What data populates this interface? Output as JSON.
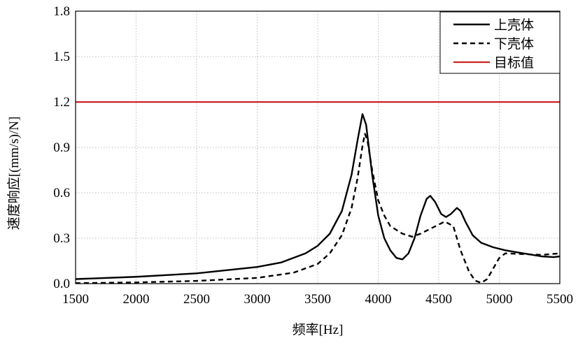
{
  "chart_data": {
    "type": "line",
    "xlabel": "频率[Hz]",
    "ylabel": "速度响应[(mm/s)/N]",
    "xlim": [
      1500,
      5500
    ],
    "ylim": [
      0,
      1.8
    ],
    "x_ticks": [
      "1500",
      "2000",
      "2500",
      "3000",
      "3500",
      "4000",
      "4500",
      "5000",
      "5500"
    ],
    "y_ticks": [
      "0.0",
      "0.3",
      "0.6",
      "0.9",
      "1.2",
      "1.5",
      "1.8"
    ],
    "grid": "dotted",
    "legend_position": "top-right",
    "series": [
      {
        "name": "上壳体",
        "color": "#000000",
        "dash": "solid",
        "points": [
          [
            1500,
            0.03
          ],
          [
            2000,
            0.045
          ],
          [
            2500,
            0.068
          ],
          [
            3000,
            0.11
          ],
          [
            3200,
            0.14
          ],
          [
            3400,
            0.2
          ],
          [
            3500,
            0.25
          ],
          [
            3600,
            0.33
          ],
          [
            3700,
            0.48
          ],
          [
            3780,
            0.72
          ],
          [
            3830,
            0.95
          ],
          [
            3870,
            1.12
          ],
          [
            3900,
            1.05
          ],
          [
            3950,
            0.72
          ],
          [
            4000,
            0.45
          ],
          [
            4050,
            0.3
          ],
          [
            4100,
            0.22
          ],
          [
            4150,
            0.17
          ],
          [
            4200,
            0.16
          ],
          [
            4250,
            0.2
          ],
          [
            4300,
            0.3
          ],
          [
            4350,
            0.45
          ],
          [
            4400,
            0.56
          ],
          [
            4430,
            0.58
          ],
          [
            4470,
            0.54
          ],
          [
            4520,
            0.46
          ],
          [
            4560,
            0.44
          ],
          [
            4600,
            0.46
          ],
          [
            4650,
            0.5
          ],
          [
            4680,
            0.48
          ],
          [
            4720,
            0.41
          ],
          [
            4780,
            0.32
          ],
          [
            4850,
            0.27
          ],
          [
            4950,
            0.24
          ],
          [
            5050,
            0.22
          ],
          [
            5200,
            0.2
          ],
          [
            5350,
            0.18
          ],
          [
            5450,
            0.175
          ],
          [
            5500,
            0.18
          ]
        ]
      },
      {
        "name": "下壳体",
        "color": "#000000",
        "dash": "dashed",
        "points": [
          [
            1500,
            0.003
          ],
          [
            2000,
            0.008
          ],
          [
            2500,
            0.018
          ],
          [
            3000,
            0.038
          ],
          [
            3300,
            0.072
          ],
          [
            3500,
            0.13
          ],
          [
            3600,
            0.2
          ],
          [
            3700,
            0.32
          ],
          [
            3780,
            0.5
          ],
          [
            3830,
            0.7
          ],
          [
            3870,
            0.91
          ],
          [
            3890,
            0.99
          ],
          [
            3910,
            0.95
          ],
          [
            3950,
            0.75
          ],
          [
            4000,
            0.55
          ],
          [
            4050,
            0.45
          ],
          [
            4100,
            0.38
          ],
          [
            4200,
            0.33
          ],
          [
            4280,
            0.31
          ],
          [
            4350,
            0.33
          ],
          [
            4450,
            0.37
          ],
          [
            4550,
            0.41
          ],
          [
            4620,
            0.38
          ],
          [
            4680,
            0.22
          ],
          [
            4750,
            0.08
          ],
          [
            4800,
            0.02
          ],
          [
            4850,
            0.005
          ],
          [
            4900,
            0.03
          ],
          [
            4950,
            0.1
          ],
          [
            5000,
            0.17
          ],
          [
            5050,
            0.2
          ],
          [
            5200,
            0.195
          ],
          [
            5350,
            0.19
          ],
          [
            5500,
            0.2
          ]
        ]
      },
      {
        "name": "目标值",
        "color": "#cc2222",
        "dash": "solid",
        "points": [
          [
            1500,
            1.2
          ],
          [
            5500,
            1.2
          ]
        ]
      }
    ]
  }
}
